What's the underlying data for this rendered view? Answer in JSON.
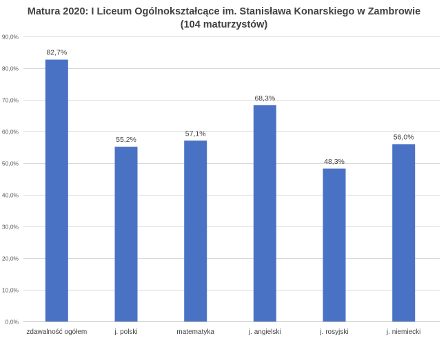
{
  "chart_data": {
    "type": "bar",
    "title_lines": [
      "Matura 2020: I Liceum Ogólnokształcące im. Stanisława Konarskiego w Zambrowie",
      "(104 maturzystów)"
    ],
    "categories": [
      "zdawalność ogółem",
      "j. polski",
      "matematyka",
      "j. angielski",
      "j. rosyjski",
      "j. niemiecki"
    ],
    "values": [
      82.7,
      55.2,
      57.1,
      68.3,
      48.3,
      56.0
    ],
    "data_labels": [
      "82,7%",
      "55,2%",
      "57,1%",
      "68,3%",
      "48,3%",
      "56,0%"
    ],
    "ylim": [
      0,
      90
    ],
    "yticks": [
      0,
      10,
      20,
      30,
      40,
      50,
      60,
      70,
      80,
      90
    ],
    "ytick_labels": [
      "0,0%",
      "10,0%",
      "20,0%",
      "30,0%",
      "40,0%",
      "50,0%",
      "60,0%",
      "70,0%",
      "80,0%",
      "90,0%"
    ],
    "grid": true,
    "legend": "none",
    "bar_color": "#4a72c4"
  }
}
